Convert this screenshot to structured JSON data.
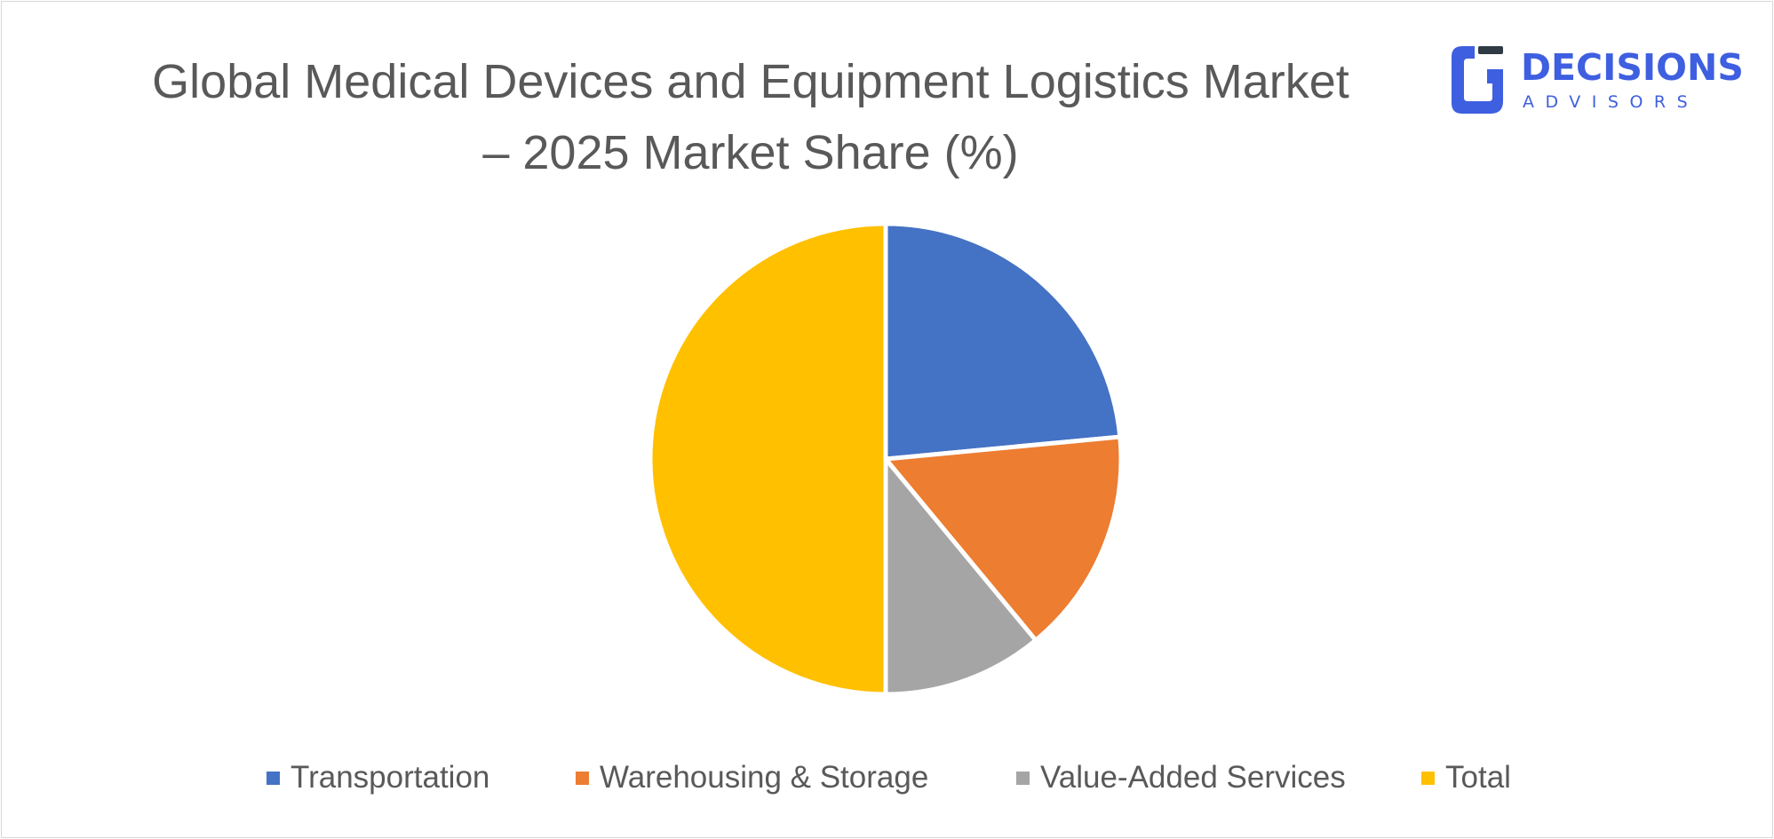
{
  "brand": {
    "name": "DECISIONS",
    "tagline": "ADVISORS",
    "color": "#3e5fe0",
    "dark_color": "#2f3a45"
  },
  "chart_data": {
    "type": "pie",
    "title": "Global Medical Devices and Equipment Logistics Market",
    "title_line2": "– 2025  Market Share (%)",
    "legend_position": "bottom",
    "categories": [
      "Transportation",
      "Warehousing & Storage",
      "Value-Added Services",
      "Total"
    ],
    "values": [
      23.5,
      15.5,
      11,
      50
    ],
    "colors": [
      "#4472c4",
      "#ed7d31",
      "#a5a5a5",
      "#ffc000"
    ],
    "start_angle_deg": 0,
    "direction": "clockwise"
  }
}
